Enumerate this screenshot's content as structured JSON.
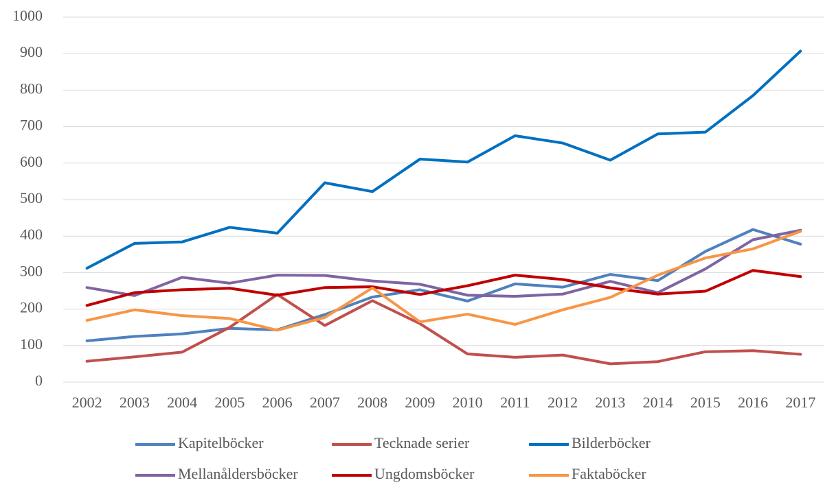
{
  "chart_data": {
    "type": "line",
    "categories": [
      "2002",
      "2003",
      "2004",
      "2005",
      "2006",
      "2007",
      "2008",
      "2009",
      "2010",
      "2011",
      "2012",
      "2013",
      "2014",
      "2015",
      "2016",
      "2017"
    ],
    "series": [
      {
        "name": "Kapitelböcker",
        "color": "#4f81bd",
        "values": [
          113,
          125,
          132,
          147,
          143,
          185,
          233,
          253,
          222,
          269,
          260,
          295,
          278,
          358,
          418,
          378
        ]
      },
      {
        "name": "Tecknade serier",
        "color": "#c0504d",
        "values": [
          57,
          69,
          82,
          150,
          240,
          155,
          223,
          160,
          77,
          68,
          74,
          50,
          56,
          83,
          86,
          76
        ]
      },
      {
        "name": "Bilderböcker",
        "color": "#0070c0",
        "values": [
          312,
          380,
          384,
          424,
          408,
          546,
          522,
          611,
          603,
          675,
          655,
          608,
          680,
          685,
          785,
          907
        ]
      },
      {
        "name": "Mellanåldersböcker",
        "color": "#8064a2",
        "values": [
          259,
          237,
          287,
          271,
          293,
          292,
          277,
          268,
          238,
          235,
          241,
          276,
          245,
          310,
          390,
          416
        ]
      },
      {
        "name": "Ungdomsböcker",
        "color": "#c00000",
        "values": [
          210,
          245,
          253,
          257,
          238,
          259,
          261,
          240,
          264,
          293,
          281,
          258,
          241,
          249,
          306,
          289
        ]
      },
      {
        "name": "Faktaböcker",
        "color": "#f79646",
        "values": [
          169,
          198,
          182,
          174,
          142,
          177,
          258,
          165,
          186,
          158,
          198,
          232,
          293,
          340,
          365,
          413
        ]
      }
    ],
    "ylim": [
      0,
      1000
    ],
    "yticks": [
      0,
      100,
      200,
      300,
      400,
      500,
      600,
      700,
      800,
      900,
      1000
    ],
    "grid": true,
    "legend": "bottom"
  }
}
